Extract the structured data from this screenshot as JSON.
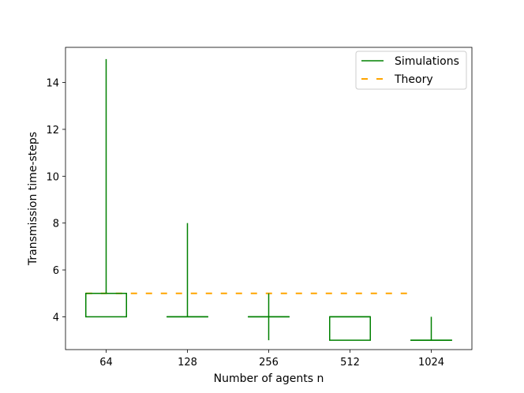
{
  "chart_data": {
    "type": "box",
    "title": "",
    "xlabel": "Number of agents n",
    "ylabel": "Transmission time-steps",
    "categories": [
      "64",
      "128",
      "256",
      "512",
      "1024"
    ],
    "ylim": [
      2.6,
      15.5
    ],
    "yticks": [
      "4",
      "6",
      "8",
      "10",
      "12",
      "14"
    ],
    "grid": false,
    "legend_position": "top-right",
    "series": [
      {
        "name": "Simulations",
        "kind": "boxplot",
        "color": "#008000",
        "boxes": [
          {
            "whislo": 4,
            "q1": 4,
            "med": 5,
            "q3": 5,
            "whishi": 15
          },
          {
            "whislo": 4,
            "q1": 4,
            "med": 4,
            "q3": 4,
            "whishi": 8
          },
          {
            "whislo": 3,
            "q1": 4,
            "med": 4,
            "q3": 4,
            "whishi": 5
          },
          {
            "whislo": 3,
            "q1": 3,
            "med": 4,
            "q3": 4,
            "whishi": 4
          },
          {
            "whislo": 3,
            "q1": 3,
            "med": 3,
            "q3": 3,
            "whishi": 4
          }
        ]
      },
      {
        "name": "Theory",
        "kind": "dashed-line",
        "color": "#FFA500",
        "values": [
          5,
          5,
          5,
          5,
          5
        ]
      }
    ]
  }
}
